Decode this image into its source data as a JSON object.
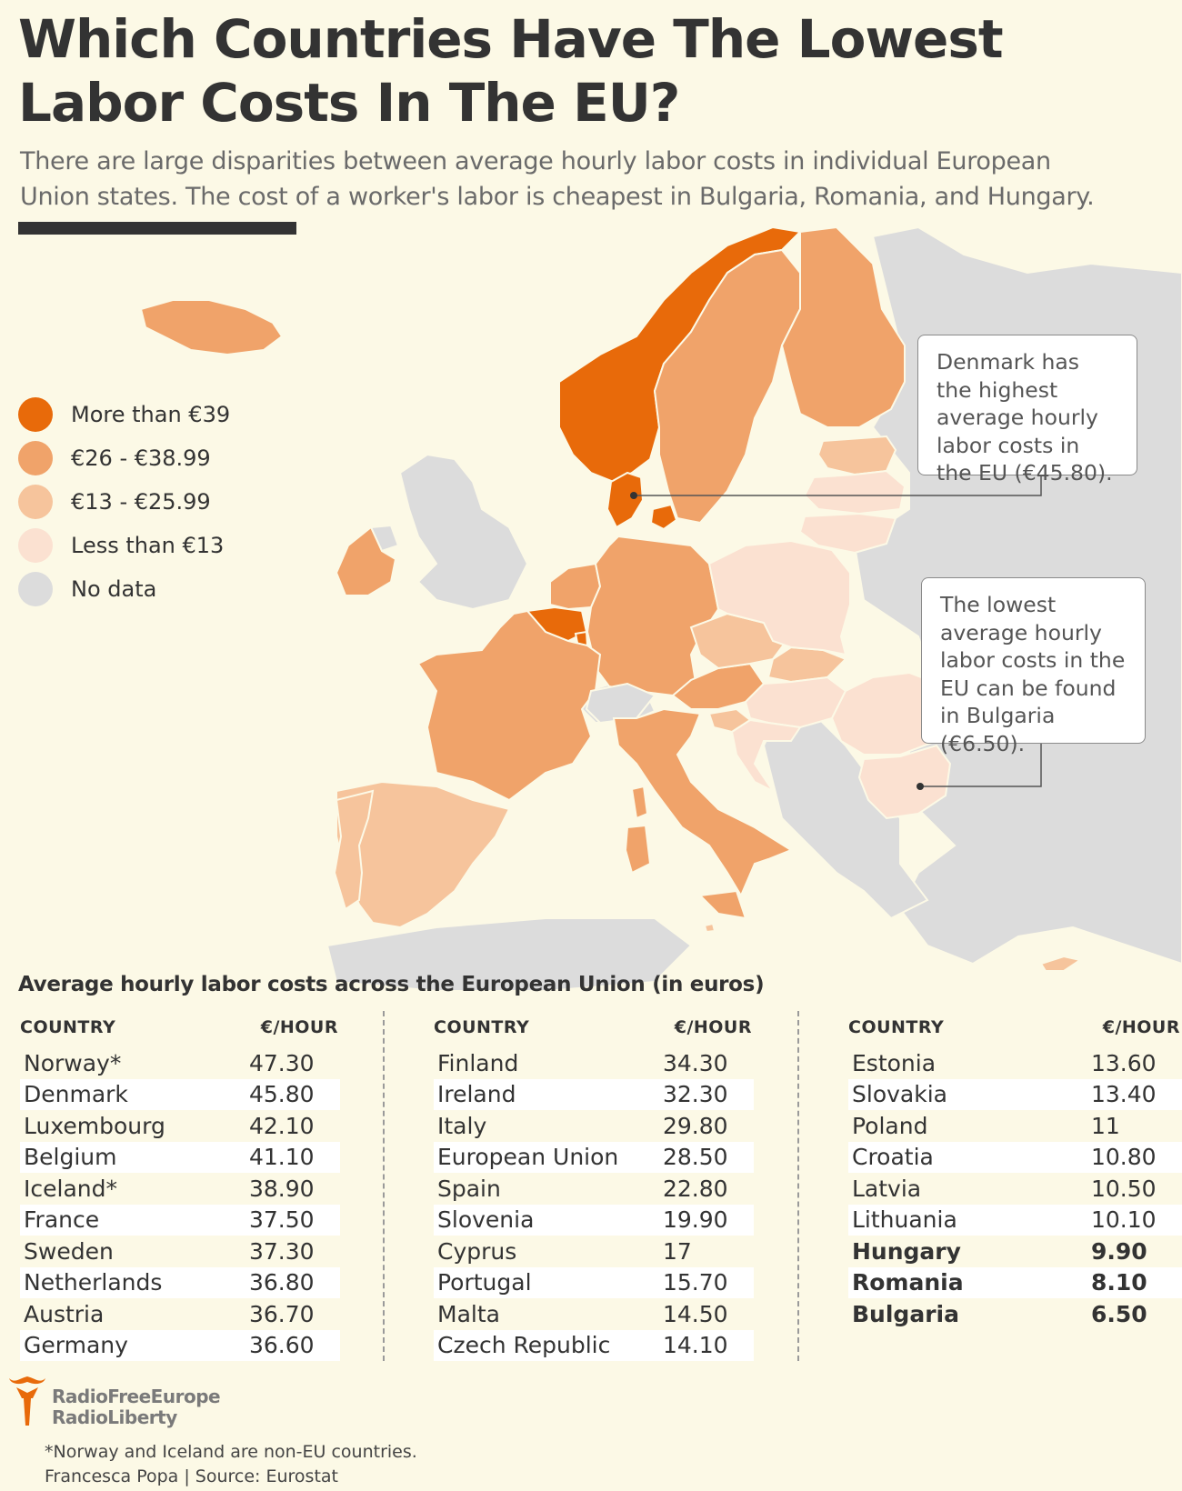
{
  "title": "Which Countries Have The Lowest Labor Costs In The EU?",
  "subtitle": "There are large disparities between average hourly labor costs in individual European Union states. The cost of a worker's labor is cheapest in Bulgaria, Romania, and Hungary.",
  "legend": [
    {
      "label": "More than €39",
      "color": "#e86a0a"
    },
    {
      "label": "€26 - €38.99",
      "color": "#f0a36a"
    },
    {
      "label": "€13 - €25.99",
      "color": "#f6c49c"
    },
    {
      "label": "Less than €13",
      "color": "#fbe1d1"
    },
    {
      "label": "No data",
      "color": "#dcdcdc"
    }
  ],
  "callouts": {
    "denmark": "Denmark has the highest average hourly labor costs in the EU (€45.80).",
    "bulgaria": "The lowest average hourly labor costs in the EU can be found in Bulgaria (€6.50)."
  },
  "table": {
    "title": "Average hourly labor costs across the European Union (in euros)",
    "col_header_country": "COUNTRY",
    "col_header_value": "€/HOUR",
    "columns": [
      [
        {
          "country": "Norway*",
          "value": "47.30"
        },
        {
          "country": "Denmark",
          "value": "45.80"
        },
        {
          "country": "Luxembourg",
          "value": "42.10"
        },
        {
          "country": "Belgium",
          "value": "41.10"
        },
        {
          "country": "Iceland*",
          "value": "38.90"
        },
        {
          "country": "France",
          "value": "37.50"
        },
        {
          "country": "Sweden",
          "value": "37.30"
        },
        {
          "country": "Netherlands",
          "value": "36.80"
        },
        {
          "country": "Austria",
          "value": "36.70"
        },
        {
          "country": "Germany",
          "value": "36.60"
        }
      ],
      [
        {
          "country": "Finland",
          "value": "34.30"
        },
        {
          "country": "Ireland",
          "value": "32.30"
        },
        {
          "country": "Italy",
          "value": "29.80"
        },
        {
          "country": "European Union",
          "value": "28.50"
        },
        {
          "country": "Spain",
          "value": "22.80"
        },
        {
          "country": "Slovenia",
          "value": "19.90"
        },
        {
          "country": "Cyprus",
          "value": "17"
        },
        {
          "country": "Portugal",
          "value": "15.70"
        },
        {
          "country": "Malta",
          "value": "14.50"
        },
        {
          "country": "Czech Republic",
          "value": "14.10"
        }
      ],
      [
        {
          "country": "Estonia",
          "value": "13.60"
        },
        {
          "country": "Slovakia",
          "value": "13.40"
        },
        {
          "country": "Poland",
          "value": "11"
        },
        {
          "country": "Croatia",
          "value": "10.80"
        },
        {
          "country": "Latvia",
          "value": "10.50"
        },
        {
          "country": "Lithuania",
          "value": "10.10"
        },
        {
          "country": "Hungary",
          "value": "9.90",
          "bold": true
        },
        {
          "country": "Romania",
          "value": "8.10",
          "bold": true
        },
        {
          "country": "Bulgaria",
          "value": "6.50",
          "bold": true
        }
      ]
    ]
  },
  "logo": {
    "line1": "RadioFreeEurope",
    "line2": "RadioLiberty"
  },
  "footnote": {
    "line1": "*Norway and Iceland are non-EU countries.",
    "line2": "Francesca Popa | Source: Eurostat"
  },
  "map_regions": [
    {
      "name": "Norway",
      "tier": 0
    },
    {
      "name": "Denmark",
      "tier": 0
    },
    {
      "name": "Luxembourg",
      "tier": 0
    },
    {
      "name": "Belgium",
      "tier": 0
    },
    {
      "name": "Iceland",
      "tier": 1
    },
    {
      "name": "France",
      "tier": 1
    },
    {
      "name": "Sweden",
      "tier": 1
    },
    {
      "name": "Netherlands",
      "tier": 1
    },
    {
      "name": "Austria",
      "tier": 1
    },
    {
      "name": "Germany",
      "tier": 1
    },
    {
      "name": "Finland",
      "tier": 1
    },
    {
      "name": "Ireland",
      "tier": 1
    },
    {
      "name": "Italy",
      "tier": 1
    },
    {
      "name": "Spain",
      "tier": 2
    },
    {
      "name": "Slovenia",
      "tier": 2
    },
    {
      "name": "Cyprus",
      "tier": 2
    },
    {
      "name": "Portugal",
      "tier": 2
    },
    {
      "name": "Malta",
      "tier": 2
    },
    {
      "name": "Czech Republic",
      "tier": 2
    },
    {
      "name": "Estonia",
      "tier": 2
    },
    {
      "name": "Slovakia",
      "tier": 2
    },
    {
      "name": "Poland",
      "tier": 3
    },
    {
      "name": "Croatia",
      "tier": 3
    },
    {
      "name": "Latvia",
      "tier": 3
    },
    {
      "name": "Lithuania",
      "tier": 3
    },
    {
      "name": "Hungary",
      "tier": 3
    },
    {
      "name": "Romania",
      "tier": 3
    },
    {
      "name": "Bulgaria",
      "tier": 3
    },
    {
      "name": "United Kingdom",
      "tier": 4
    },
    {
      "name": "Switzerland",
      "tier": 4
    }
  ]
}
